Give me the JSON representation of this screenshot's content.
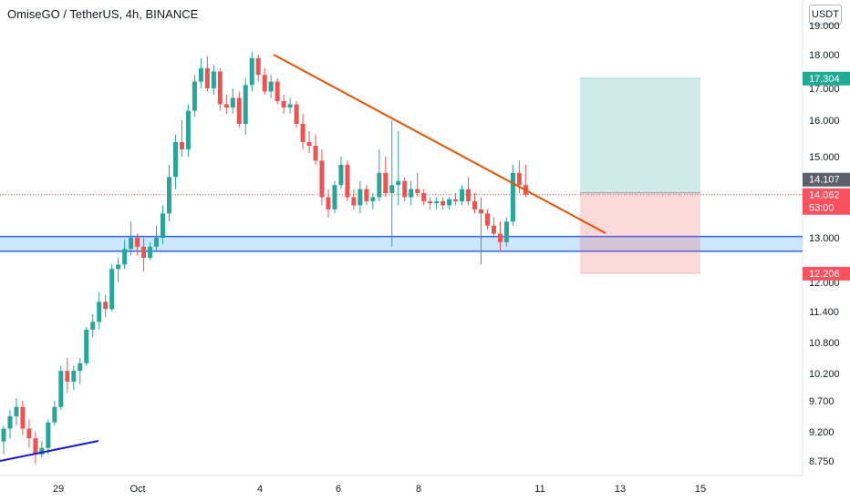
{
  "header": {
    "title": "OmiseGO / TetherUS, 4h, BINANCE",
    "currency": "USDT"
  },
  "chart_data": {
    "type": "candlestick",
    "y_ticks": [
      19.0,
      18.0,
      17.0,
      16.0,
      15.0,
      13.0,
      12.0,
      11.4,
      10.8,
      10.2,
      9.7,
      9.2,
      8.75
    ],
    "y_tick_labels": [
      "19.000",
      "18.000",
      "17.000",
      "16.000",
      "15.000",
      "13.000",
      "12.000",
      "11.400",
      "10.800",
      "10.200",
      "9.700",
      "9.200",
      "8.750"
    ],
    "x_ticks": [
      "29",
      "Oct",
      "4",
      "6",
      "8",
      "11",
      "13",
      "15"
    ],
    "price_labels": [
      {
        "text": "17.304",
        "value": 17.304,
        "bg": "#22ab94",
        "fg": "#ffffff"
      },
      {
        "text": "14.107",
        "value": 14.107,
        "bg": "#5d606b",
        "fg": "#ffffff"
      },
      {
        "text": "14.062",
        "value": 14.062,
        "bg": "#f7525f",
        "fg": "#ffffff"
      },
      {
        "text": "53:00",
        "value": 13.82,
        "bg": "#f7525f",
        "fg": "#ffffff"
      },
      {
        "text": "12.206",
        "value": 12.206,
        "bg": "#f7525f",
        "fg": "#ffffff"
      }
    ],
    "support_zone": {
      "low": 12.7,
      "high": 13.03
    },
    "current_price": 14.062,
    "position": {
      "entry": 14.107,
      "target": 17.304,
      "stop": 12.206
    },
    "colors": {
      "up": "#26a69a",
      "down": "#ef5350",
      "trendline_down": "#e65100",
      "trendline_up": "#1a1ac8",
      "zone_fill": "#bbdefb",
      "zone_border": "#2962ff"
    }
  }
}
